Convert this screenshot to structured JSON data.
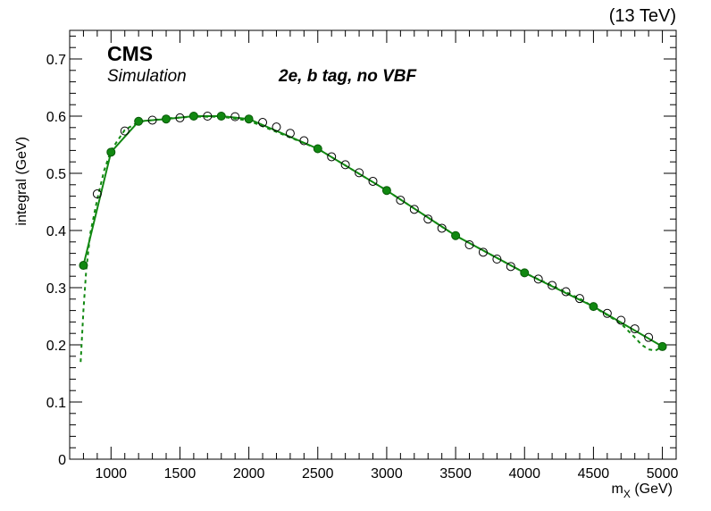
{
  "chart_data": {
    "type": "line",
    "energy_label": "(13 TeV)",
    "experiment": "CMS",
    "subtitle": "Simulation",
    "category": "2e, b tag, no VBF",
    "xlabel": "m",
    "xlabel_sub": "X",
    "xlabel_unit": " (GeV)",
    "ylabel": "integral (GeV)",
    "xlim": [
      700,
      5100
    ],
    "ylim": [
      0,
      0.75
    ],
    "x_ticks": [
      1000,
      1500,
      2000,
      2500,
      3000,
      3500,
      4000,
      4500,
      5000
    ],
    "y_ticks": [
      0,
      0.1,
      0.2,
      0.3,
      0.4,
      0.5,
      0.6,
      0.7
    ],
    "colors": {
      "series": "#118811",
      "frame": "#000000"
    },
    "series": [
      {
        "marker": "filled-circle",
        "style": "solid",
        "x": [
          800,
          1000,
          1200,
          1400,
          1600,
          1800,
          2000,
          2500,
          3000,
          3500,
          4000,
          4500,
          5000
        ],
        "y": [
          0.339,
          0.537,
          0.591,
          0.595,
          0.6,
          0.6,
          0.595,
          0.543,
          0.47,
          0.391,
          0.326,
          0.267,
          0.197
        ]
      },
      {
        "marker": "open-circle",
        "style": "dashed",
        "x": [
          900,
          1100,
          1300,
          1500,
          1700,
          1900,
          2100,
          2200,
          2300,
          2400,
          2600,
          2700,
          2800,
          2900,
          3100,
          3200,
          3300,
          3400,
          3600,
          3700,
          3800,
          3900,
          4100,
          4200,
          4300,
          4400,
          4600,
          4700,
          4800,
          4900
        ],
        "y": [
          0.464,
          0.574,
          0.593,
          0.597,
          0.6,
          0.599,
          0.589,
          0.581,
          0.57,
          0.557,
          0.529,
          0.515,
          0.501,
          0.486,
          0.453,
          0.437,
          0.42,
          0.404,
          0.375,
          0.362,
          0.35,
          0.337,
          0.315,
          0.304,
          0.293,
          0.281,
          0.255,
          0.243,
          0.228,
          0.213
        ]
      }
    ],
    "dashed_curve": {
      "x": [
        780,
        800,
        820,
        850,
        900,
        950,
        1000,
        1100,
        1200,
        1400,
        1600,
        1800,
        2000,
        2500,
        3000,
        3500,
        4000,
        4400,
        4600,
        4700,
        4800,
        4850,
        4900,
        4950,
        5000
      ],
      "y": [
        0.17,
        0.26,
        0.33,
        0.395,
        0.455,
        0.505,
        0.54,
        0.576,
        0.59,
        0.596,
        0.599,
        0.599,
        0.592,
        0.543,
        0.47,
        0.391,
        0.326,
        0.281,
        0.252,
        0.237,
        0.213,
        0.2,
        0.192,
        0.19,
        0.197
      ]
    }
  }
}
